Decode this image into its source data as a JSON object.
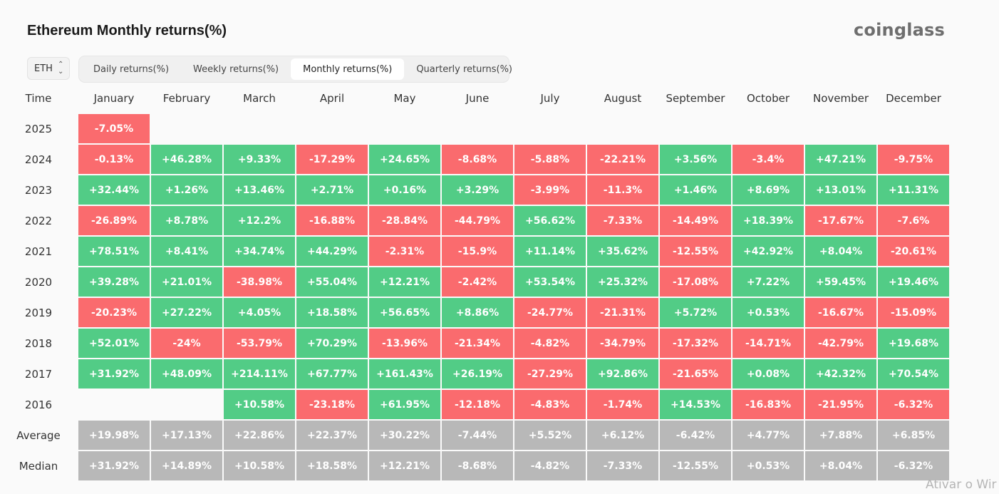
{
  "header": {
    "title": "Ethereum Monthly returns(%)",
    "logo_text": "coinglass"
  },
  "controls": {
    "asset": "ETH",
    "asset_icon": "chevron-up-down-icon",
    "tabs": [
      {
        "label": "Daily returns(%)",
        "active": false
      },
      {
        "label": "Weekly returns(%)",
        "active": false
      },
      {
        "label": "Monthly returns(%)",
        "active": true
      },
      {
        "label": "Quarterly returns(%)",
        "active": false
      }
    ]
  },
  "table": {
    "corner_label": "Time",
    "months": [
      "January",
      "February",
      "March",
      "April",
      "May",
      "June",
      "July",
      "August",
      "September",
      "October",
      "November",
      "December"
    ],
    "rows": [
      {
        "label": "2025",
        "type": "year",
        "values": [
          "-7.05%",
          "",
          "",
          "",
          "",
          "",
          "",
          "",
          "",
          "",
          "",
          ""
        ]
      },
      {
        "label": "2024",
        "type": "year",
        "values": [
          "-0.13%",
          "+46.28%",
          "+9.33%",
          "-17.29%",
          "+24.65%",
          "-8.68%",
          "-5.88%",
          "-22.21%",
          "+3.56%",
          "-3.4%",
          "+47.21%",
          "-9.75%"
        ]
      },
      {
        "label": "2023",
        "type": "year",
        "values": [
          "+32.44%",
          "+1.26%",
          "+13.46%",
          "+2.71%",
          "+0.16%",
          "+3.29%",
          "-3.99%",
          "-11.3%",
          "+1.46%",
          "+8.69%",
          "+13.01%",
          "+11.31%"
        ]
      },
      {
        "label": "2022",
        "type": "year",
        "values": [
          "-26.89%",
          "+8.78%",
          "+12.2%",
          "-16.88%",
          "-28.84%",
          "-44.79%",
          "+56.62%",
          "-7.33%",
          "-14.49%",
          "+18.39%",
          "-17.67%",
          "-7.6%"
        ]
      },
      {
        "label": "2021",
        "type": "year",
        "values": [
          "+78.51%",
          "+8.41%",
          "+34.74%",
          "+44.29%",
          "-2.31%",
          "-15.9%",
          "+11.14%",
          "+35.62%",
          "-12.55%",
          "+42.92%",
          "+8.04%",
          "-20.61%"
        ]
      },
      {
        "label": "2020",
        "type": "year",
        "values": [
          "+39.28%",
          "+21.01%",
          "-38.98%",
          "+55.04%",
          "+12.21%",
          "-2.42%",
          "+53.54%",
          "+25.32%",
          "-17.08%",
          "+7.22%",
          "+59.45%",
          "+19.46%"
        ]
      },
      {
        "label": "2019",
        "type": "year",
        "values": [
          "-20.23%",
          "+27.22%",
          "+4.05%",
          "+18.58%",
          "+56.65%",
          "+8.86%",
          "-24.77%",
          "-21.31%",
          "+5.72%",
          "+0.53%",
          "-16.67%",
          "-15.09%"
        ]
      },
      {
        "label": "2018",
        "type": "year",
        "values": [
          "+52.01%",
          "-24%",
          "-53.79%",
          "+70.29%",
          "-13.96%",
          "-21.34%",
          "-4.82%",
          "-34.79%",
          "-17.32%",
          "-14.71%",
          "-42.79%",
          "+19.68%"
        ]
      },
      {
        "label": "2017",
        "type": "year",
        "values": [
          "+31.92%",
          "+48.09%",
          "+214.11%",
          "+67.77%",
          "+161.43%",
          "+26.19%",
          "-27.29%",
          "+92.86%",
          "-21.65%",
          "+0.08%",
          "+42.32%",
          "+70.54%"
        ]
      },
      {
        "label": "2016",
        "type": "year",
        "values": [
          "",
          "",
          "+10.58%",
          "-23.18%",
          "+61.95%",
          "-12.18%",
          "-4.83%",
          "-1.74%",
          "+14.53%",
          "-16.83%",
          "-21.95%",
          "-6.32%"
        ]
      },
      {
        "label": "Average",
        "type": "stat",
        "values": [
          "+19.98%",
          "+17.13%",
          "+22.86%",
          "+22.37%",
          "+30.22%",
          "-7.44%",
          "+5.52%",
          "+6.12%",
          "-6.42%",
          "+4.77%",
          "+7.88%",
          "+6.85%"
        ]
      },
      {
        "label": "Median",
        "type": "stat",
        "values": [
          "+31.92%",
          "+14.89%",
          "+10.58%",
          "+18.58%",
          "+12.21%",
          "-8.68%",
          "-4.82%",
          "-7.33%",
          "-12.55%",
          "+0.53%",
          "+8.04%",
          "-6.32%"
        ]
      }
    ]
  },
  "colors": {
    "positive": "#52cc86",
    "negative": "#fa6b6e",
    "stat": "#b8b8b8"
  },
  "watermark": "Ativar o Wir"
}
